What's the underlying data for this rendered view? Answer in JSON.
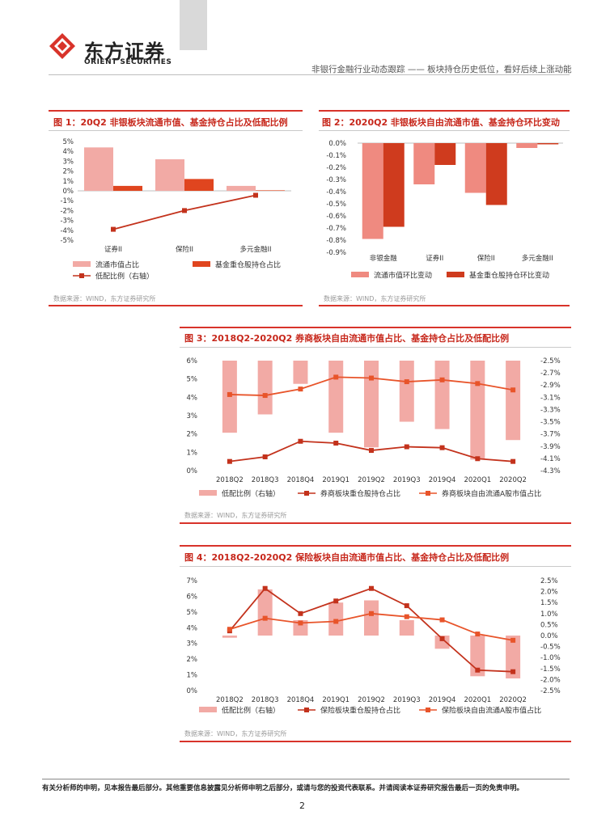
{
  "header": {
    "brand_cn": "东方证券",
    "brand_en": "ORIENT SECURITIES",
    "report_line": "非银行金融行业动态跟踪 —— 板块持仓历史低位，看好后续上涨动能"
  },
  "figures": [
    {
      "title": "图 1：20Q2 非银板块流通市值、基金持仓占比及低配比例",
      "source": "数据来源：WIND，东方证券研究所",
      "chart_data": {
        "type": "bar",
        "categories": [
          "证券II",
          "保险II",
          "多元金融II"
        ],
        "ylim": [
          -5,
          5
        ],
        "y_ticks": [
          "5%",
          "4%",
          "3%",
          "2%",
          "1%",
          "0%",
          "-1%",
          "-2%",
          "-3%",
          "-4%",
          "-5%"
        ],
        "series": [
          {
            "name": "流通市值占比",
            "kind": "bar",
            "color": "#f2aaa5",
            "values": [
              4.4,
              3.2,
              0.5
            ]
          },
          {
            "name": "基金重仓股持仓占比",
            "kind": "bar",
            "color": "#e0451f",
            "values": [
              0.5,
              1.2,
              0.05
            ]
          },
          {
            "name": "低配比例（右轴）",
            "kind": "line",
            "color": "#c3321c",
            "values": [
              -3.9,
              -2.0,
              -0.45
            ]
          }
        ]
      }
    },
    {
      "title": "图 2：2020Q2 非银板块自由流通市值、基金持仓环比变动",
      "source": "数据来源：WIND，东方证券研究所",
      "chart_data": {
        "type": "bar",
        "categories": [
          "非银金融",
          "证券II",
          "保险II",
          "多元金融II"
        ],
        "ylim": [
          -0.9,
          0.0
        ],
        "y_ticks": [
          "0.0%",
          "-0.1%",
          "-0.2%",
          "-0.3%",
          "-0.4%",
          "-0.5%",
          "-0.6%",
          "-0.7%",
          "-0.8%",
          "-0.9%"
        ],
        "series": [
          {
            "name": "流通市值环比变动",
            "kind": "bar",
            "color": "#ef8a80",
            "values": [
              -0.79,
              -0.34,
              -0.41,
              -0.04
            ]
          },
          {
            "name": "基金重仓股持仓环比变动",
            "kind": "bar",
            "color": "#cf3b1e",
            "values": [
              -0.69,
              -0.18,
              -0.51,
              -0.01
            ]
          }
        ]
      }
    },
    {
      "title": "图 3：2018Q2-2020Q2 券商板块自由流通市值占比、基金持仓占比及低配比例",
      "source": "数据来源：WIND，东方证券研究所",
      "chart_data": {
        "type": "bar",
        "categories": [
          "2018Q2",
          "2018Q3",
          "2018Q4",
          "2019Q1",
          "2019Q2",
          "2019Q3",
          "2019Q4",
          "2020Q1",
          "2020Q2"
        ],
        "ylim": [
          0,
          6
        ],
        "y2lim": [
          -4.3,
          -2.5
        ],
        "y_ticks": [
          "6%",
          "5%",
          "4%",
          "3%",
          "2%",
          "1%",
          "0%"
        ],
        "y2_ticks": [
          "-2.5%",
          "-2.7%",
          "-2.9%",
          "-3.1%",
          "-3.3%",
          "-3.5%",
          "-3.7%",
          "-3.9%",
          "-4.1%",
          "-4.3%"
        ],
        "series": [
          {
            "name": "低配比例（右轴）",
            "kind": "bar",
            "axis": "right",
            "color": "#f2aaa5",
            "values": [
              -3.68,
              -3.38,
              -2.88,
              -3.68,
              -3.92,
              -3.5,
              -3.62,
              -4.12,
              -3.8
            ]
          },
          {
            "name": "券商板块重仓股持仓占比",
            "kind": "line",
            "axis": "left",
            "color": "#c3321c",
            "values": [
              0.5,
              0.75,
              1.6,
              1.5,
              1.1,
              1.3,
              1.25,
              0.65,
              0.5
            ]
          },
          {
            "name": "券商板块自由流通A股市值占比",
            "kind": "line",
            "axis": "left",
            "color": "#e8542a",
            "values": [
              4.15,
              4.1,
              4.45,
              5.1,
              5.05,
              4.85,
              4.95,
              4.75,
              4.4
            ]
          }
        ]
      }
    },
    {
      "title": "图 4：2018Q2-2020Q2 保险板块自由流通市值占比、基金持仓占比及低配比例",
      "source": "数据来源：WIND，东方证券研究所",
      "chart_data": {
        "type": "bar",
        "categories": [
          "2018Q2",
          "2018Q3",
          "2018Q4",
          "2019Q1",
          "2019Q2",
          "2019Q3",
          "2019Q4",
          "2020Q1",
          "2020Q2"
        ],
        "ylim": [
          0,
          7
        ],
        "y2lim": [
          -2.5,
          2.5
        ],
        "y_ticks": [
          "7%",
          "6%",
          "5%",
          "4%",
          "3%",
          "2%",
          "1%",
          "0%"
        ],
        "y2_ticks": [
          "2.5%",
          "2.0%",
          "1.5%",
          "1.0%",
          "0.5%",
          "0.0%",
          "-0.5%",
          "-1.0%",
          "-1.5%",
          "-2.0%",
          "-2.5%"
        ],
        "series": [
          {
            "name": "低配比例（右轴）",
            "kind": "bar",
            "axis": "right",
            "color": "#f2aaa5",
            "values": [
              -0.1,
              2.1,
              0.7,
              1.5,
              1.6,
              0.7,
              -0.6,
              -1.85,
              -1.95
            ]
          },
          {
            "name": "保险板块重仓股持仓占比",
            "kind": "line",
            "axis": "left",
            "color": "#c3321c",
            "values": [
              3.8,
              6.5,
              4.9,
              5.7,
              6.5,
              5.4,
              3.3,
              1.3,
              1.2
            ]
          },
          {
            "name": "保险板块自由流通A股市值占比",
            "kind": "line",
            "axis": "left",
            "color": "#e8542a",
            "values": [
              3.9,
              4.6,
              4.3,
              4.4,
              4.9,
              4.7,
              4.5,
              3.6,
              3.2
            ]
          }
        ]
      }
    }
  ],
  "footer": {
    "disclaimer": "有关分析师的申明，见本报告最后部分。其他重要信息披露见分析师申明之后部分，或请与您的投资代表联系。并请阅读本证券研究报告最后一页的免责申明。",
    "page_number": "2"
  }
}
